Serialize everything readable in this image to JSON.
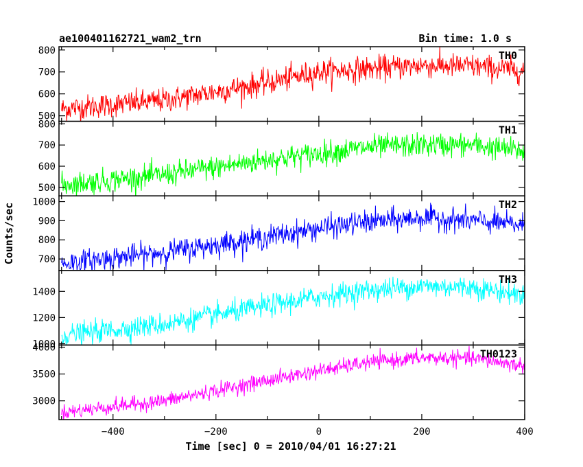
{
  "chart_data": {
    "type": "line",
    "title": "ae100401162721_wam2_trn",
    "subtitle": "Bin time: 1.0 s",
    "xlabel": "Time [sec] 0 = 2010/04/01 16:27:21",
    "ylabel": "Counts/sec",
    "xlim": [
      -505,
      400
    ],
    "x_ticks": [
      -400,
      -200,
      0,
      200,
      400
    ],
    "panels": [
      {
        "name": "TH0",
        "color": "#ff0000",
        "ylim": [
          475,
          815
        ],
        "yticks": [
          500,
          600,
          700,
          800
        ],
        "trend_x": [
          -505,
          -300,
          -100,
          0,
          100,
          200,
          300,
          400
        ],
        "trend_y": [
          530,
          570,
          650,
          700,
          715,
          730,
          725,
          705
        ],
        "noise_sd": 28
      },
      {
        "name": "TH1",
        "color": "#00ff00",
        "ylim": [
          460,
          812
        ],
        "yticks": [
          500,
          600,
          700,
          800
        ],
        "trend_x": [
          -505,
          -300,
          -100,
          0,
          100,
          200,
          300,
          400
        ],
        "trend_y": [
          510,
          560,
          630,
          660,
          690,
          700,
          700,
          670
        ],
        "noise_sd": 28
      },
      {
        "name": "TH2",
        "color": "#0000ff",
        "ylim": [
          640,
          1030
        ],
        "yticks": [
          700,
          800,
          900,
          1000
        ],
        "trend_x": [
          -505,
          -300,
          -100,
          0,
          100,
          200,
          300,
          400
        ],
        "trend_y": [
          675,
          735,
          815,
          860,
          895,
          915,
          900,
          875
        ],
        "noise_sd": 30
      },
      {
        "name": "TH3",
        "color": "#00ffff",
        "ylim": [
          990,
          1560
        ],
        "yticks": [
          1000,
          1200,
          1400
        ],
        "trend_x": [
          -505,
          -300,
          -100,
          0,
          100,
          200,
          300,
          400
        ],
        "trend_y": [
          1060,
          1150,
          1290,
          1360,
          1410,
          1440,
          1430,
          1370
        ],
        "noise_sd": 42
      },
      {
        "name": "TH0123",
        "color": "#ff00ff",
        "ylim": [
          2650,
          4040
        ],
        "yticks": [
          3000,
          3500,
          4000
        ],
        "trend_x": [
          -505,
          -300,
          -100,
          0,
          100,
          200,
          300,
          400
        ],
        "trend_y": [
          2780,
          3000,
          3380,
          3560,
          3720,
          3800,
          3790,
          3650
        ],
        "noise_sd": 70
      }
    ],
    "grid": false,
    "legend": "none"
  }
}
